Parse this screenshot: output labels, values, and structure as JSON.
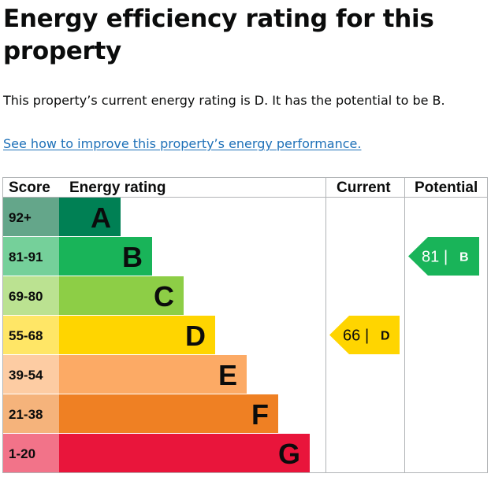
{
  "heading": "Energy efficiency rating for this property",
  "summary": "This property’s current energy rating is D. It has the potential to be B.",
  "improve_link": "See how to improve this property’s energy performance.",
  "table": {
    "headers": {
      "score": "Score",
      "rating": "Energy rating",
      "current": "Current",
      "potential": "Potential"
    },
    "bands": [
      {
        "score": "92+",
        "letter": "A",
        "color": "#008054",
        "score_bg": "#64a68a"
      },
      {
        "score": "81-91",
        "letter": "B",
        "color": "#19b459",
        "score_bg": "#75d09a"
      },
      {
        "score": "69-80",
        "letter": "C",
        "color": "#8dce46",
        "score_bg": "#bbe291"
      },
      {
        "score": "55-68",
        "letter": "D",
        "color": "#ffd500",
        "score_bg": "#ffe666"
      },
      {
        "score": "39-54",
        "letter": "E",
        "color": "#fcaa65",
        "score_bg": "#fdcca3"
      },
      {
        "score": "21-38",
        "letter": "F",
        "color": "#ef8023",
        "score_bg": "#f5b37b"
      },
      {
        "score": "1-20",
        "letter": "G",
        "color": "#e9153b",
        "score_bg": "#f27389"
      }
    ],
    "current": {
      "value": "66",
      "separator": "|",
      "letter": "D",
      "color": "#ffd500"
    },
    "potential": {
      "value": "81",
      "separator": "|",
      "letter": "B",
      "color": "#19b459",
      "text_color": "#ffffff"
    }
  }
}
